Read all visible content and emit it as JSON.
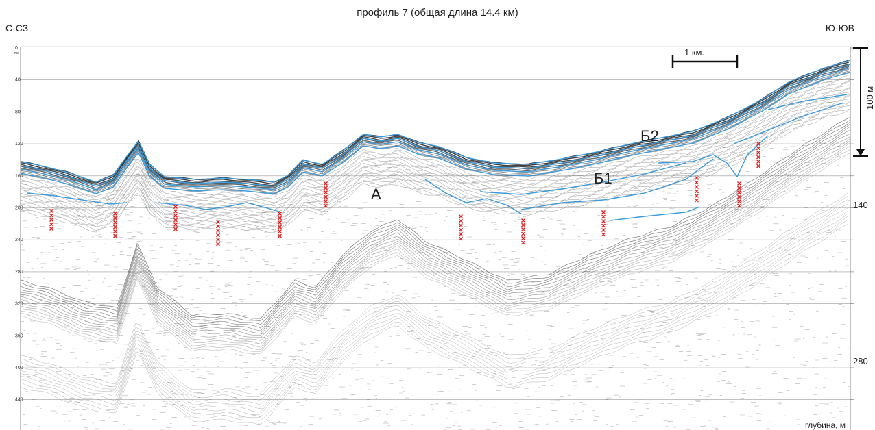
{
  "header": {
    "title": "профиль 7 (общая длина 14.4 км)",
    "dir_left": "С-СЗ",
    "dir_right": "Ю-ЮВ"
  },
  "axis": {
    "time_ticks": [
      "0",
      "40",
      "80",
      "120",
      "160",
      "200",
      "240",
      "280",
      "320",
      "360",
      "400",
      "440"
    ],
    "time_unit": "ms",
    "depth_ticks": [
      "140",
      "280"
    ],
    "depth_label": "глубина, м"
  },
  "scale_bar": {
    "label": "1 км."
  },
  "vertical_scale": {
    "label": "100 м"
  },
  "units": {
    "A": "А",
    "B1": "Б1",
    "B2": "Б2"
  },
  "colors": {
    "horizon": "#3a9bdc",
    "fault": "#e02020",
    "grid": "#9a9a9a",
    "seismic": "#1a1a1a"
  }
}
